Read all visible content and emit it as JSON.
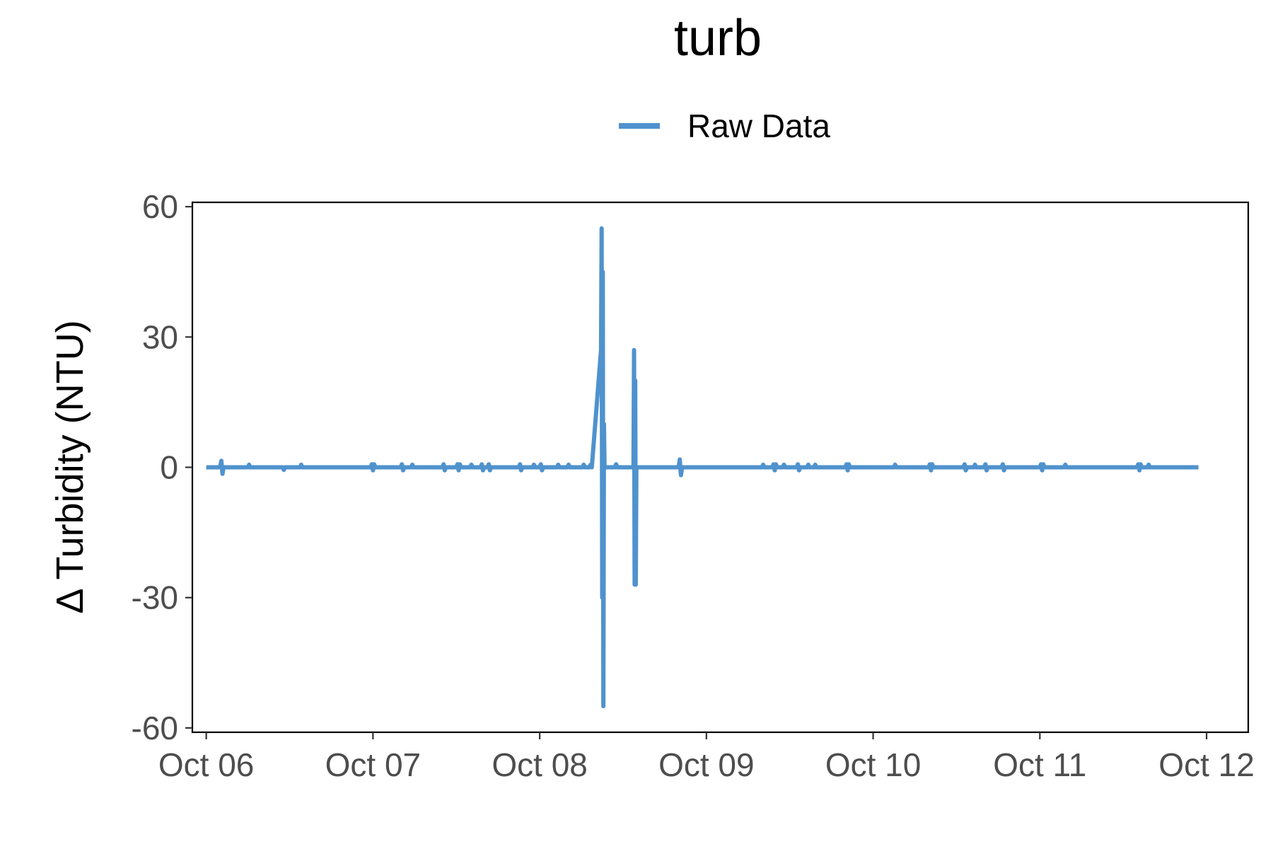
{
  "chart_data": {
    "type": "line",
    "title": "turb",
    "xlabel": "",
    "ylabel": "Δ Turbidity (NTU)",
    "legend": {
      "position": "top",
      "entries": [
        "Raw Data"
      ]
    },
    "grid": false,
    "x_type": "date",
    "xlim": [
      "2023-10-05T22:00",
      "2023-10-12T06:00"
    ],
    "ylim": [
      -61,
      61
    ],
    "x_ticks": [
      {
        "value": "2023-10-06T00:00",
        "label": "Oct 06"
      },
      {
        "value": "2023-10-07T00:00",
        "label": "Oct 07"
      },
      {
        "value": "2023-10-08T00:00",
        "label": "Oct 08"
      },
      {
        "value": "2023-10-09T00:00",
        "label": "Oct 09"
      },
      {
        "value": "2023-10-10T00:00",
        "label": "Oct 10"
      },
      {
        "value": "2023-10-11T00:00",
        "label": "Oct 11"
      },
      {
        "value": "2023-10-12T00:00",
        "label": "Oct 12"
      }
    ],
    "y_ticks": [
      {
        "value": 60,
        "label": "60"
      },
      {
        "value": 30,
        "label": "30"
      },
      {
        "value": 0,
        "label": "0"
      },
      {
        "value": -30,
        "label": "-30"
      },
      {
        "value": -60,
        "label": "-60"
      }
    ],
    "series": [
      {
        "name": "Raw Data",
        "color": "#4f92cd",
        "points": [
          [
            "2023-10-06T00:00",
            0
          ],
          [
            "2023-10-06T02:00",
            0
          ],
          [
            "2023-10-06T02:10",
            1.5
          ],
          [
            "2023-10-06T02:20",
            -1.5
          ],
          [
            "2023-10-06T02:30",
            0
          ],
          [
            "2023-10-06T06:00",
            0
          ],
          [
            "2023-10-06T06:10",
            0.6
          ],
          [
            "2023-10-06T06:20",
            0
          ],
          [
            "2023-10-06T11:00",
            0
          ],
          [
            "2023-10-06T11:10",
            -0.6
          ],
          [
            "2023-10-06T11:20",
            0
          ],
          [
            "2023-10-06T13:30",
            0
          ],
          [
            "2023-10-06T13:40",
            0.6
          ],
          [
            "2023-10-06T13:50",
            0
          ],
          [
            "2023-10-06T23:40",
            0
          ],
          [
            "2023-10-06T23:50",
            0.7
          ],
          [
            "2023-10-07T00:00",
            -0.7
          ],
          [
            "2023-10-07T00:10",
            0.7
          ],
          [
            "2023-10-07T00:20",
            0
          ],
          [
            "2023-10-07T04:00",
            0
          ],
          [
            "2023-10-07T04:10",
            0.7
          ],
          [
            "2023-10-07T04:20",
            -0.7
          ],
          [
            "2023-10-07T04:30",
            0
          ],
          [
            "2023-10-07T05:30",
            0
          ],
          [
            "2023-10-07T05:40",
            0.6
          ],
          [
            "2023-10-07T05:50",
            0
          ],
          [
            "2023-10-07T10:00",
            0
          ],
          [
            "2023-10-07T10:10",
            0.7
          ],
          [
            "2023-10-07T10:20",
            -0.7
          ],
          [
            "2023-10-07T10:30",
            0
          ],
          [
            "2023-10-07T12:00",
            0
          ],
          [
            "2023-10-07T12:10",
            0.7
          ],
          [
            "2023-10-07T12:20",
            -0.7
          ],
          [
            "2023-10-07T12:30",
            0.7
          ],
          [
            "2023-10-07T12:40",
            0
          ],
          [
            "2023-10-07T14:00",
            0
          ],
          [
            "2023-10-07T14:10",
            0.6
          ],
          [
            "2023-10-07T14:20",
            0
          ],
          [
            "2023-10-07T15:30",
            0
          ],
          [
            "2023-10-07T15:40",
            0.7
          ],
          [
            "2023-10-07T15:50",
            -0.7
          ],
          [
            "2023-10-07T16:00",
            0
          ],
          [
            "2023-10-07T16:30",
            0
          ],
          [
            "2023-10-07T16:40",
            0.7
          ],
          [
            "2023-10-07T16:50",
            -0.7
          ],
          [
            "2023-10-07T17:00",
            0
          ],
          [
            "2023-10-07T21:00",
            0
          ],
          [
            "2023-10-07T21:10",
            0.7
          ],
          [
            "2023-10-07T21:20",
            -0.7
          ],
          [
            "2023-10-07T21:30",
            0
          ],
          [
            "2023-10-07T23:00",
            0
          ],
          [
            "2023-10-07T23:10",
            0.6
          ],
          [
            "2023-10-07T23:20",
            0
          ],
          [
            "2023-10-08T00:00",
            0
          ],
          [
            "2023-10-08T00:10",
            0.7
          ],
          [
            "2023-10-08T00:20",
            -0.7
          ],
          [
            "2023-10-08T00:30",
            0
          ],
          [
            "2023-10-08T02:30",
            0
          ],
          [
            "2023-10-08T02:40",
            0.6
          ],
          [
            "2023-10-08T02:50",
            0
          ],
          [
            "2023-10-08T04:00",
            0
          ],
          [
            "2023-10-08T04:10",
            0.6
          ],
          [
            "2023-10-08T04:20",
            0
          ],
          [
            "2023-10-08T06:10",
            0
          ],
          [
            "2023-10-08T06:20",
            0.6
          ],
          [
            "2023-10-08T06:30",
            0
          ],
          [
            "2023-10-08T07:10",
            0
          ],
          [
            "2023-10-08T07:20",
            0.6
          ],
          [
            "2023-10-08T07:30",
            0
          ],
          [
            "2023-10-08T08:50",
            27
          ],
          [
            "2023-10-08T08:55",
            55
          ],
          [
            "2023-10-08T09:00",
            -30
          ],
          [
            "2023-10-08T09:05",
            45
          ],
          [
            "2023-10-08T09:10",
            -55
          ],
          [
            "2023-10-08T09:15",
            10
          ],
          [
            "2023-10-08T09:20",
            0
          ],
          [
            "2023-10-08T10:50",
            0
          ],
          [
            "2023-10-08T11:00",
            0.7
          ],
          [
            "2023-10-08T11:10",
            0
          ],
          [
            "2023-10-08T13:30",
            0
          ],
          [
            "2023-10-08T13:35",
            27
          ],
          [
            "2023-10-08T13:40",
            -27
          ],
          [
            "2023-10-08T13:45",
            20
          ],
          [
            "2023-10-08T13:50",
            -27
          ],
          [
            "2023-10-08T13:55",
            0
          ],
          [
            "2023-10-08T20:00",
            0
          ],
          [
            "2023-10-08T20:10",
            1.8
          ],
          [
            "2023-10-08T20:20",
            -1.8
          ],
          [
            "2023-10-08T20:30",
            0
          ],
          [
            "2023-10-09T08:00",
            0
          ],
          [
            "2023-10-09T08:10",
            0.6
          ],
          [
            "2023-10-09T08:20",
            0
          ],
          [
            "2023-10-09T09:30",
            0
          ],
          [
            "2023-10-09T09:40",
            0.7
          ],
          [
            "2023-10-09T09:50",
            -0.7
          ],
          [
            "2023-10-09T10:00",
            0.7
          ],
          [
            "2023-10-09T10:10",
            0
          ],
          [
            "2023-10-09T11:00",
            0
          ],
          [
            "2023-10-09T11:10",
            0.6
          ],
          [
            "2023-10-09T11:20",
            0
          ],
          [
            "2023-10-09T13:00",
            0
          ],
          [
            "2023-10-09T13:10",
            0.7
          ],
          [
            "2023-10-09T13:20",
            -0.7
          ],
          [
            "2023-10-09T13:30",
            0
          ],
          [
            "2023-10-09T14:30",
            0
          ],
          [
            "2023-10-09T14:40",
            0.6
          ],
          [
            "2023-10-09T14:50",
            0
          ],
          [
            "2023-10-09T15:30",
            0
          ],
          [
            "2023-10-09T15:40",
            0.6
          ],
          [
            "2023-10-09T15:50",
            0
          ],
          [
            "2023-10-09T20:00",
            0
          ],
          [
            "2023-10-09T20:10",
            0.7
          ],
          [
            "2023-10-09T20:20",
            -0.7
          ],
          [
            "2023-10-09T20:30",
            0.7
          ],
          [
            "2023-10-09T20:40",
            0
          ],
          [
            "2023-10-10T03:00",
            0
          ],
          [
            "2023-10-10T03:10",
            0.6
          ],
          [
            "2023-10-10T03:20",
            0
          ],
          [
            "2023-10-10T08:00",
            0
          ],
          [
            "2023-10-10T08:10",
            0.7
          ],
          [
            "2023-10-10T08:20",
            -0.7
          ],
          [
            "2023-10-10T08:30",
            0.7
          ],
          [
            "2023-10-10T08:40",
            0
          ],
          [
            "2023-10-10T13:00",
            0
          ],
          [
            "2023-10-10T13:10",
            0.7
          ],
          [
            "2023-10-10T13:20",
            -0.7
          ],
          [
            "2023-10-10T13:30",
            0
          ],
          [
            "2023-10-10T14:30",
            0
          ],
          [
            "2023-10-10T14:40",
            0.6
          ],
          [
            "2023-10-10T14:50",
            0
          ],
          [
            "2023-10-10T16:00",
            0
          ],
          [
            "2023-10-10T16:10",
            0.7
          ],
          [
            "2023-10-10T16:20",
            -0.7
          ],
          [
            "2023-10-10T16:30",
            0
          ],
          [
            "2023-10-10T18:30",
            0
          ],
          [
            "2023-10-10T18:40",
            0.7
          ],
          [
            "2023-10-10T18:50",
            -0.7
          ],
          [
            "2023-10-10T19:00",
            0
          ],
          [
            "2023-10-11T00:00",
            0
          ],
          [
            "2023-10-11T00:10",
            0.7
          ],
          [
            "2023-10-11T00:20",
            -0.7
          ],
          [
            "2023-10-11T00:30",
            0.7
          ],
          [
            "2023-10-11T00:40",
            0
          ],
          [
            "2023-10-11T03:30",
            0
          ],
          [
            "2023-10-11T03:40",
            0.6
          ],
          [
            "2023-10-11T03:50",
            0
          ],
          [
            "2023-10-11T14:00",
            0
          ],
          [
            "2023-10-11T14:10",
            0.7
          ],
          [
            "2023-10-11T14:20",
            -0.7
          ],
          [
            "2023-10-11T14:30",
            0.7
          ],
          [
            "2023-10-11T14:40",
            0
          ],
          [
            "2023-10-11T15:30",
            0
          ],
          [
            "2023-10-11T15:40",
            0.6
          ],
          [
            "2023-10-11T15:50",
            0
          ],
          [
            "2023-10-11T22:50",
            0
          ]
        ]
      }
    ]
  }
}
